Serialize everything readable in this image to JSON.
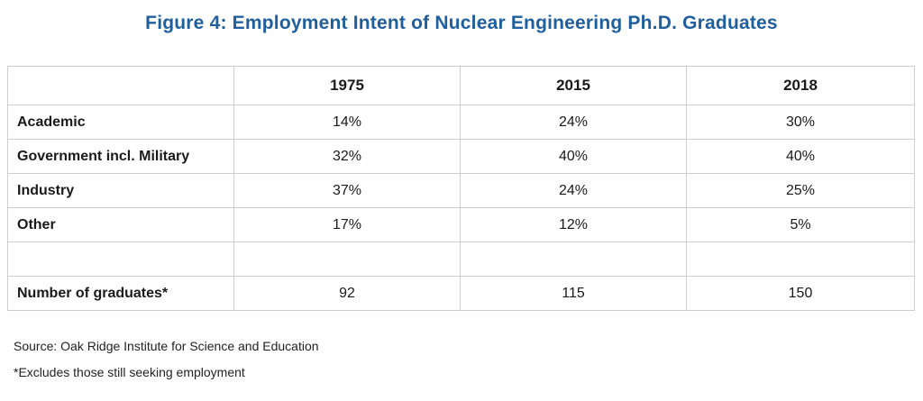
{
  "title": "Figure 4: Employment Intent of Nuclear Engineering Ph.D. Graduates",
  "columns": [
    "",
    "1975",
    "2015",
    "2018"
  ],
  "rows": [
    {
      "label": "Academic",
      "values": [
        "14%",
        "24%",
        "30%"
      ]
    },
    {
      "label": "Government incl. Military",
      "values": [
        "32%",
        "40%",
        "40%"
      ]
    },
    {
      "label": "Industry",
      "values": [
        "37%",
        "24%",
        "25%"
      ]
    },
    {
      "label": "Other",
      "values": [
        "17%",
        "12%",
        "5%"
      ]
    },
    {
      "label": "",
      "values": [
        "",
        "",
        ""
      ]
    },
    {
      "label": "Number of graduates*",
      "values": [
        "92",
        "115",
        "150"
      ]
    }
  ],
  "source": "Source: Oak Ridge Institute for Science and Education",
  "footnote": "*Excludes those still seeking employment",
  "colors": {
    "title": "#1f5f9e",
    "border": "#cfcfcf"
  }
}
